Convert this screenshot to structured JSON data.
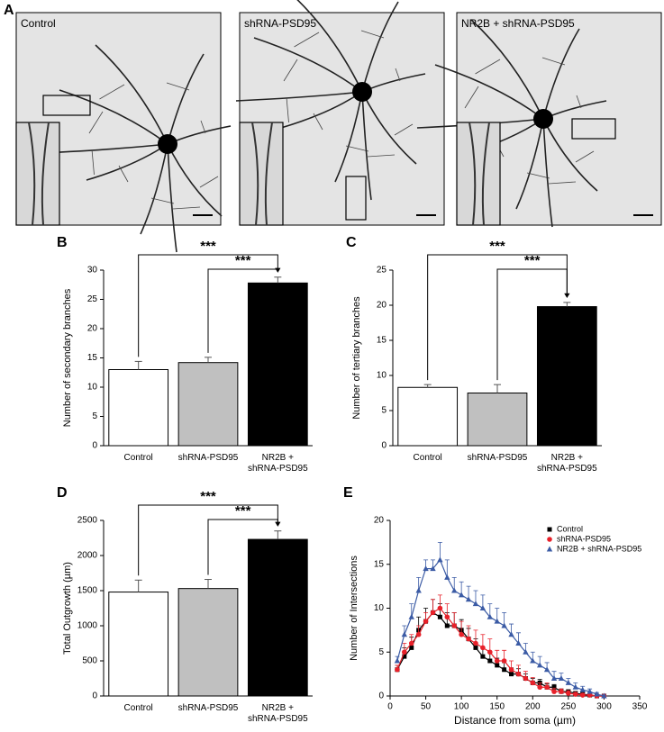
{
  "panel_a": {
    "panel": "A",
    "images": [
      "Control",
      "shRNA-PSD95",
      "NR2B + shRNA-PSD95"
    ]
  },
  "chart_data": [
    {
      "type": "bar",
      "panel": "B",
      "y_label": "Number of secondary branches",
      "categories": [
        "Control",
        "shRNA-PSD95",
        "NR2B +\nshRNA-PSD95"
      ],
      "values": [
        13,
        14.2,
        27.8
      ],
      "errors": [
        1.4,
        0.9,
        1.0
      ],
      "colors": [
        "#ffffff",
        "#c0c0c0",
        "#000000"
      ],
      "ylim": [
        0,
        30
      ],
      "yticks": [
        0,
        5,
        10,
        15,
        20,
        25,
        30
      ],
      "annotations": [
        "***",
        "***"
      ]
    },
    {
      "type": "bar",
      "panel": "C",
      "y_label": "Number of tertiary branches",
      "categories": [
        "Control",
        "shRNA-PSD95",
        "NR2B +\nshRNA-PSD95"
      ],
      "values": [
        8.3,
        7.5,
        19.8
      ],
      "errors": [
        0.4,
        1.2,
        0.6
      ],
      "colors": [
        "#ffffff",
        "#c0c0c0",
        "#000000"
      ],
      "ylim": [
        0,
        25
      ],
      "yticks": [
        0,
        5,
        10,
        15,
        20,
        25
      ],
      "annotations": [
        "***",
        "***"
      ]
    },
    {
      "type": "bar",
      "panel": "D",
      "y_label": "Total Outgrowth  (µm)",
      "categories": [
        "Control",
        "shRNA-PSD95",
        "NR2B +\nshRNA-PSD95"
      ],
      "values": [
        1480,
        1530,
        2230
      ],
      "errors": [
        170,
        130,
        120
      ],
      "colors": [
        "#ffffff",
        "#c0c0c0",
        "#000000"
      ],
      "ylim": [
        0,
        2500
      ],
      "yticks": [
        0,
        500,
        1000,
        1500,
        2000,
        2500
      ],
      "annotations": [
        "***",
        "***"
      ]
    },
    {
      "type": "line",
      "panel": "E",
      "y_label": "Number of Intersections",
      "x_label": "Distance from soma (µm)",
      "x": [
        10,
        20,
        30,
        40,
        50,
        60,
        70,
        80,
        90,
        100,
        110,
        120,
        130,
        140,
        150,
        160,
        170,
        180,
        190,
        200,
        210,
        220,
        230,
        240,
        250,
        260,
        270,
        280,
        290,
        300
      ],
      "series": [
        {
          "name": "Control",
          "color": "#000000",
          "marker": "square",
          "values": [
            3,
            4.5,
            5.5,
            7.5,
            8.5,
            9.5,
            9,
            8,
            8,
            7.5,
            6.5,
            5.5,
            4.5,
            4,
            3.5,
            3,
            2.5,
            2.5,
            2,
            1.5,
            1.5,
            1,
            1,
            0.5,
            0.5,
            0.3,
            0.2,
            0.1,
            0,
            0
          ],
          "errors": [
            0.5,
            1,
            1.2,
            1.5,
            1.5,
            1.5,
            1.5,
            1.5,
            1.5,
            1.2,
            1.2,
            1,
            1,
            1,
            0.8,
            0.8,
            0.7,
            0.6,
            0.5,
            0.5,
            0.4,
            0.4,
            0.3,
            0.3,
            0.2,
            0.2,
            0.2,
            0.1,
            0.1,
            0.1
          ]
        },
        {
          "name": "shRNA-PSD95",
          "color": "#e8212a",
          "marker": "circle",
          "values": [
            3,
            5,
            6,
            7,
            8.5,
            9.5,
            10,
            9,
            8,
            7,
            6.5,
            6,
            5.5,
            5,
            4,
            4,
            3,
            2.5,
            2,
            1.5,
            1,
            1,
            0.5,
            0.5,
            0.3,
            0.2,
            0.1,
            0.1,
            0,
            0
          ],
          "errors": [
            0.5,
            1,
            1,
            1,
            1,
            1.5,
            1.5,
            1.5,
            1.5,
            1.5,
            1.5,
            1.5,
            1.5,
            1.5,
            1.2,
            1.2,
            1,
            1,
            0.8,
            0.6,
            0.5,
            0.5,
            0.4,
            0.3,
            0.3,
            0.2,
            0.2,
            0.1,
            0.1,
            0.1
          ]
        },
        {
          "name": "NR2B + shRNA-PSD95",
          "color": "#3b5ba5",
          "marker": "triangle",
          "values": [
            4,
            7,
            9,
            12,
            14.5,
            14.5,
            15.5,
            13.5,
            12,
            11.5,
            11,
            10.5,
            10,
            9,
            8.5,
            8,
            7,
            6,
            5,
            4,
            3.5,
            3,
            2,
            2,
            1.5,
            1,
            0.7,
            0.5,
            0.2,
            0
          ],
          "errors": [
            0.5,
            1,
            1.5,
            1.5,
            1,
            1,
            2,
            2,
            1.5,
            1.5,
            1.5,
            1.5,
            1.5,
            1.5,
            1.5,
            1.5,
            1.2,
            1.2,
            1,
            1,
            1,
            0.8,
            0.8,
            0.6,
            0.5,
            0.5,
            0.4,
            0.3,
            0.2,
            0.1
          ]
        }
      ],
      "xlim": [
        0,
        350
      ],
      "xticks": [
        0,
        50,
        100,
        150,
        200,
        250,
        300,
        350
      ],
      "ylim": [
        0,
        20
      ],
      "yticks": [
        0,
        5,
        10,
        15,
        20
      ],
      "legend": "upper-right"
    }
  ]
}
